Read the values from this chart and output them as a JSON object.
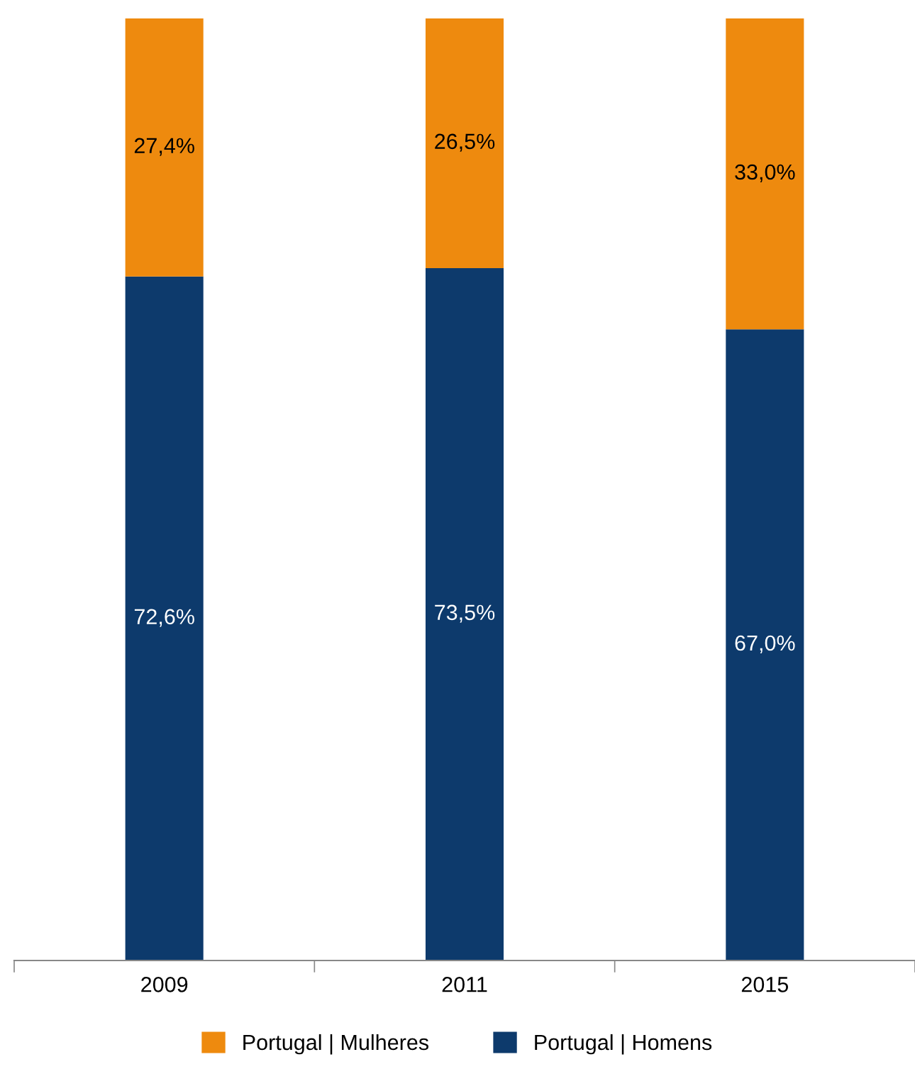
{
  "chart_data": {
    "type": "bar",
    "stacked": true,
    "categories": [
      "2009",
      "2011",
      "2015"
    ],
    "series": [
      {
        "name": "Portugal | Homens",
        "color": "#0d3a6c",
        "values": [
          72.6,
          73.5,
          67.0
        ],
        "value_labels": [
          "72,6%",
          "73,5%",
          "67,0%"
        ]
      },
      {
        "name": "Portugal | Mulheres",
        "color": "#ee8a0e",
        "values": [
          27.4,
          26.5,
          33.0
        ],
        "value_labels": [
          "27,4%",
          "26,5%",
          "33,0%"
        ]
      }
    ],
    "legend": "bottom",
    "grid": false
  }
}
